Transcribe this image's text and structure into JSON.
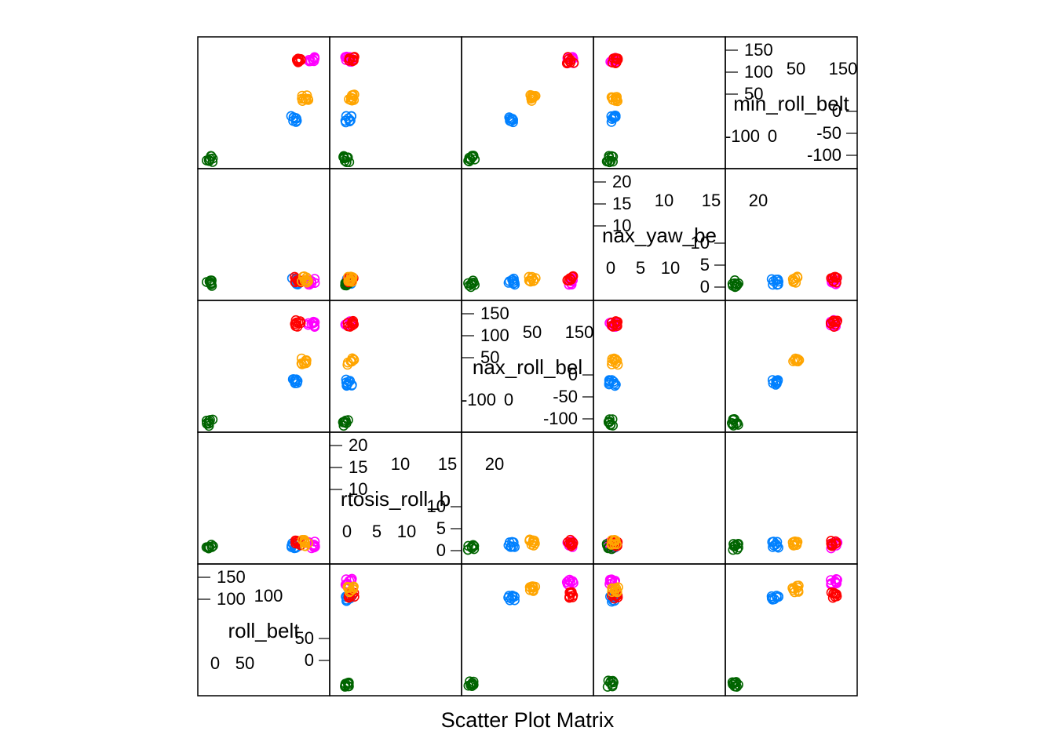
{
  "chart_data": {
    "type": "scatter",
    "title": "Scatter Plot Matrix",
    "layout": "lattice splom, diagonal panels drawn top-right to bottom-left",
    "variables": [
      {
        "name": "roll_belt",
        "range": [
          -6,
          165
        ],
        "ticks_low": [
          "0",
          "50"
        ],
        "ticks_high": [
          "100",
          "150"
        ],
        "left_ticks": [
          "150",
          "100"
        ],
        "right_ticks": [
          "50",
          "0"
        ],
        "bottom_ticks": [
          "0",
          "50"
        ],
        "top_ticks": [
          "100"
        ]
      },
      {
        "name": "kurtosis_roll_belt",
        "range": [
          -2,
          24
        ],
        "left_ticks": [
          "20",
          "15",
          "10"
        ],
        "right_ticks": [
          "10",
          "5",
          "0"
        ],
        "bottom_ticks": [
          "0",
          "5",
          "10"
        ],
        "top_ticks": [
          "10",
          "15",
          "20"
        ]
      },
      {
        "name": "max_roll_belt",
        "range": [
          -105,
          200
        ],
        "left_ticks": [
          "150",
          "100",
          "50"
        ],
        "right_ticks": [
          "0",
          "-50",
          "-100"
        ],
        "bottom_ticks": [
          "-100",
          "0"
        ],
        "top_ticks": [
          "50",
          "150"
        ]
      },
      {
        "name": "max_yaw_belt",
        "range": [
          -2,
          24
        ],
        "left_ticks": [
          "20",
          "15",
          "10"
        ],
        "right_ticks": [
          "10",
          "5",
          "0"
        ],
        "bottom_ticks": [
          "0",
          "5",
          "10"
        ],
        "top_ticks": [
          "10",
          "15",
          "20"
        ]
      },
      {
        "name": "min_roll_belt",
        "range": [
          -105,
          200
        ],
        "left_ticks": [
          "150",
          "100",
          "50"
        ],
        "right_ticks": [
          "0",
          "-50",
          "-100"
        ],
        "bottom_ticks": [
          "-100",
          "0"
        ],
        "top_ticks": [
          "50",
          "150"
        ]
      }
    ],
    "diagonal_label_text": [
      "roll_belt",
      "rtosis_roll_b",
      "nax_roll_bel",
      "nax_yaw_be",
      "min_roll_belt"
    ],
    "series_colors": [
      "#0080ff",
      "#ff00ff",
      "#006400",
      "#ff0000",
      "#ffa500"
    ],
    "groups": [
      {
        "color": "#0080ff",
        "roll_belt": 125,
        "kurtosis_roll_belt": 0.5,
        "max_roll_belt": 5,
        "max_yaw_belt": 0.5,
        "min_roll_belt": 5
      },
      {
        "color": "#ff00ff",
        "roll_belt": 150,
        "kurtosis_roll_belt": 0.5,
        "max_roll_belt": 160,
        "max_yaw_belt": 0.5,
        "min_roll_belt": 160
      },
      {
        "color": "#006400",
        "roll_belt": 0,
        "kurtosis_roll_belt": 0,
        "max_roll_belt": -100,
        "max_yaw_belt": 0,
        "min_roll_belt": -100
      },
      {
        "color": "#ff0000",
        "roll_belt": 130,
        "kurtosis_roll_belt": 1,
        "max_roll_belt": 160,
        "max_yaw_belt": 1,
        "min_roll_belt": 160
      },
      {
        "color": "#ffa500",
        "roll_belt": 140,
        "kurtosis_roll_belt": 1,
        "max_roll_belt": 60,
        "max_yaw_belt": 1,
        "min_roll_belt": 60
      }
    ],
    "grid": false,
    "legend": "none"
  }
}
